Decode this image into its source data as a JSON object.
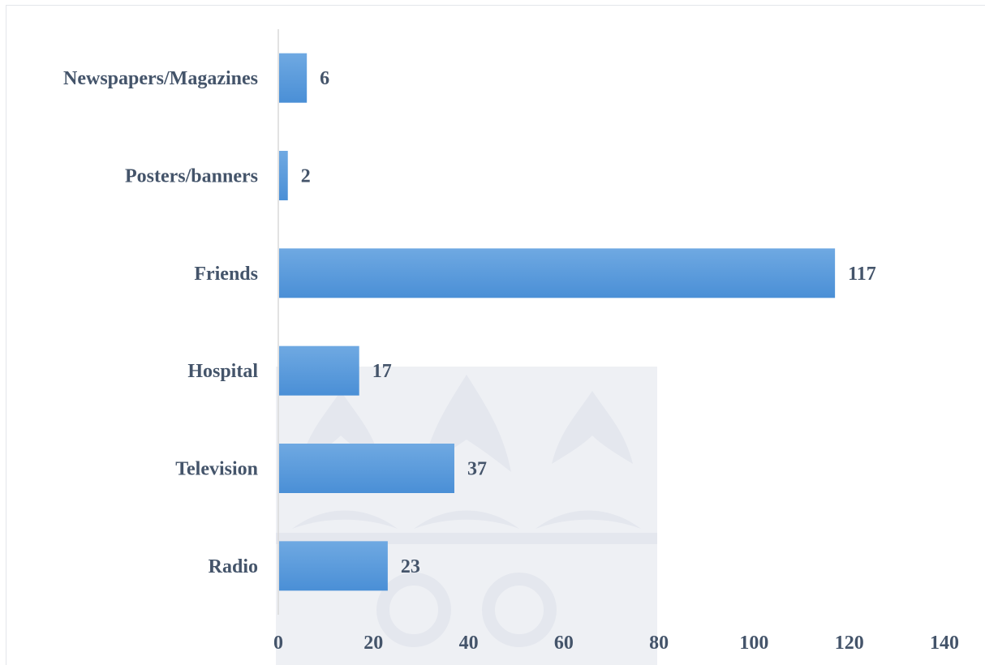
{
  "chart_data": {
    "type": "bar",
    "orientation": "horizontal",
    "categories": [
      "Newspapers/Magazines",
      "Posters/banners",
      "Friends",
      "Hospital",
      "Television",
      "Radio"
    ],
    "values": [
      6,
      2,
      117,
      17,
      37,
      23
    ],
    "title": "",
    "xlabel": "",
    "ylabel": "",
    "xlim": [
      0,
      140
    ],
    "xticks": [
      0,
      20,
      40,
      60,
      80,
      100,
      120,
      140
    ],
    "grid": false,
    "legend": "none",
    "data_labels": true,
    "bar_color": "#4a8fd6",
    "bar_color_light": "#6fa9e2",
    "text_color": "#44546a"
  }
}
